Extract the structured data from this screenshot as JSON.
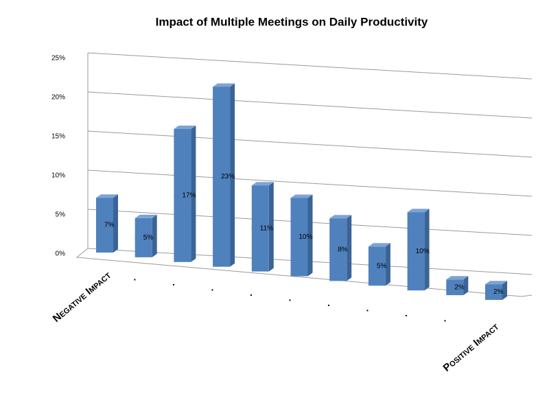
{
  "chart_data": {
    "type": "bar3d",
    "title": "Impact of Multiple Meetings on Daily Productivity",
    "categories": [
      "Negative Impact",
      ".",
      ".",
      ".",
      ".",
      ".",
      ".",
      ".",
      ".",
      ".",
      "Positive Impact"
    ],
    "values": [
      7,
      5,
      17,
      23,
      11,
      10,
      8,
      5,
      10,
      2,
      2
    ],
    "value_labels": [
      "7%",
      "5%",
      "17%",
      "23%",
      "11%",
      "10%",
      "8%",
      "5%",
      "10%",
      "2%",
      "2%"
    ],
    "color": "#4f81bd",
    "ylim": [
      0,
      25
    ],
    "yticks": [
      {
        "value": 0,
        "label": "0%"
      },
      {
        "value": 5,
        "label": "5%"
      },
      {
        "value": 10,
        "label": "10%"
      },
      {
        "value": 15,
        "label": "15%"
      },
      {
        "value": 20,
        "label": "20%"
      },
      {
        "value": 25,
        "label": "25%"
      }
    ],
    "grid": true
  }
}
